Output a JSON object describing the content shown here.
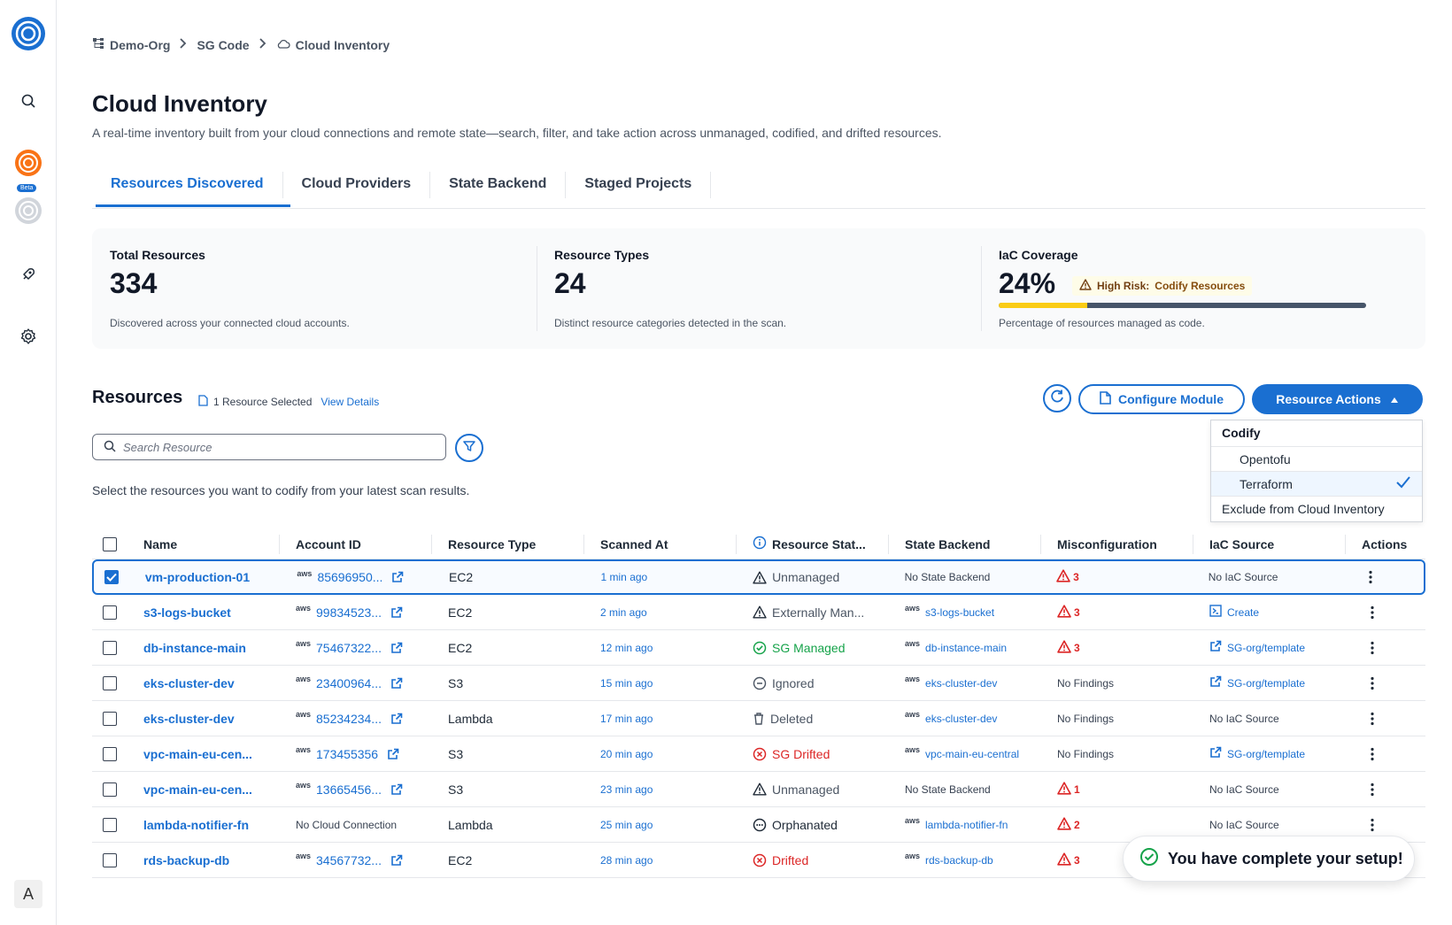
{
  "breadcrumb": [
    {
      "label": "Demo-Org"
    },
    {
      "label": "SG Code"
    },
    {
      "label": "Cloud Inventory"
    }
  ],
  "page": {
    "title": "Cloud Inventory",
    "description": "A real-time inventory built from your cloud connections and remote state—search, filter, and take action across unmanaged, codified, and drifted resources."
  },
  "sidebar": {
    "beta_label": "Beta",
    "avatar_initial": "A"
  },
  "tabs": [
    {
      "label": "Resources Discovered",
      "active": true
    },
    {
      "label": "Cloud Providers",
      "active": false
    },
    {
      "label": "State Backend",
      "active": false
    },
    {
      "label": "Staged Projects",
      "active": false
    }
  ],
  "stats": {
    "total": {
      "label": "Total Resources",
      "value": "334",
      "note": "Discovered across your connected cloud accounts."
    },
    "types": {
      "label": "Resource Types",
      "value": "24",
      "note": "Distinct resource categories detected in the scan."
    },
    "coverage": {
      "label": "IaC Coverage",
      "value": "24%",
      "risk_label": "High Risk:",
      "risk_action": "Codify Resources",
      "note": "Percentage of resources managed as code.",
      "percent": 0.24
    }
  },
  "resources": {
    "title": "Resources",
    "selected_text": "1 Resource Selected",
    "view_details": "View Details",
    "configure_label": "Configure Module",
    "actions_label": "Resource Actions",
    "search_placeholder": "Search Resource",
    "hint": "Select the resources you want to codify from your latest scan results."
  },
  "dropdown": {
    "header": "Codify",
    "items": [
      "Opentofu",
      "Terraform"
    ],
    "selected": "Terraform",
    "exclude": "Exclude from Cloud Inventory"
  },
  "table": {
    "headers": [
      "Name",
      "Account ID",
      "Resource Type",
      "Scanned At",
      "Resource Stat...",
      "State Backend",
      "Misconfiguration",
      "IaC Source",
      "Actions"
    ],
    "aws_label": "aws",
    "rows": [
      {
        "name": "vm-production-01",
        "account": "85696950...",
        "type": "EC2",
        "time": "1 min ago",
        "status": "Unmanaged",
        "status_kind": "warn",
        "backend": "No State Backend",
        "backend_link": false,
        "mis": "3",
        "iac": "No IaC Source",
        "iac_kind": "none",
        "selected": true
      },
      {
        "name": "s3-logs-bucket",
        "account": "99834523...",
        "type": "EC2",
        "time": "2 min ago",
        "status": "Externally Man...",
        "status_kind": "warn",
        "backend": "s3-logs-bucket",
        "backend_link": true,
        "mis": "3",
        "iac": "Create",
        "iac_kind": "create",
        "selected": false
      },
      {
        "name": "db-instance-main",
        "account": "75467322...",
        "type": "EC2",
        "time": "12 min ago",
        "status": "SG Managed",
        "status_kind": "ok",
        "backend": "db-instance-main",
        "backend_link": true,
        "mis": "3",
        "iac": "SG-org/template",
        "iac_kind": "link",
        "selected": false
      },
      {
        "name": "eks-cluster-dev",
        "account": "23400964...",
        "type": "S3",
        "time": "15 min ago",
        "status": "Ignored",
        "status_kind": "ignored",
        "backend": "eks-cluster-dev",
        "backend_link": true,
        "mis": "No Findings",
        "iac": "SG-org/template",
        "iac_kind": "link",
        "selected": false
      },
      {
        "name": "eks-cluster-dev",
        "account": "85234234...",
        "type": "Lambda",
        "time": "17 min ago",
        "status": "Deleted",
        "status_kind": "deleted",
        "backend": "eks-cluster-dev",
        "backend_link": true,
        "mis": "No Findings",
        "iac": "No IaC Source",
        "iac_kind": "none",
        "selected": false
      },
      {
        "name": "vpc-main-eu-cen...",
        "account": "173455356",
        "type": "S3",
        "time": "20 min ago",
        "status": "SG Drifted",
        "status_kind": "drift",
        "backend": "vpc-main-eu-central",
        "backend_link": true,
        "mis": "No Findings",
        "iac": "SG-org/template",
        "iac_kind": "link",
        "selected": false
      },
      {
        "name": "vpc-main-eu-cen...",
        "account": "13665456...",
        "type": "S3",
        "time": "23 min ago",
        "status": "Unmanaged",
        "status_kind": "warn",
        "backend": "No State Backend",
        "backend_link": false,
        "mis": "1",
        "iac": "No IaC Source",
        "iac_kind": "none",
        "selected": false
      },
      {
        "name": "lambda-notifier-fn",
        "account": "No Cloud Connection",
        "type": "Lambda",
        "time": "25 min ago",
        "status": "Orphanated",
        "status_kind": "orphan",
        "backend": "lambda-notifier-fn",
        "backend_link": true,
        "mis": "2",
        "iac": "No IaC Source",
        "iac_kind": "none",
        "selected": false
      },
      {
        "name": "rds-backup-db",
        "account": "34567732...",
        "type": "EC2",
        "time": "28 min ago",
        "status": "Drifted",
        "status_kind": "drift",
        "backend": "rds-backup-db",
        "backend_link": true,
        "mis": "3",
        "iac": "",
        "iac_kind": "none",
        "selected": false
      }
    ]
  },
  "toast": {
    "message": "You have complete your setup!"
  },
  "colors": {
    "accent": "#1a6fd1",
    "danger": "#dc2626",
    "success": "#16a34a",
    "warning": "#facc15"
  }
}
